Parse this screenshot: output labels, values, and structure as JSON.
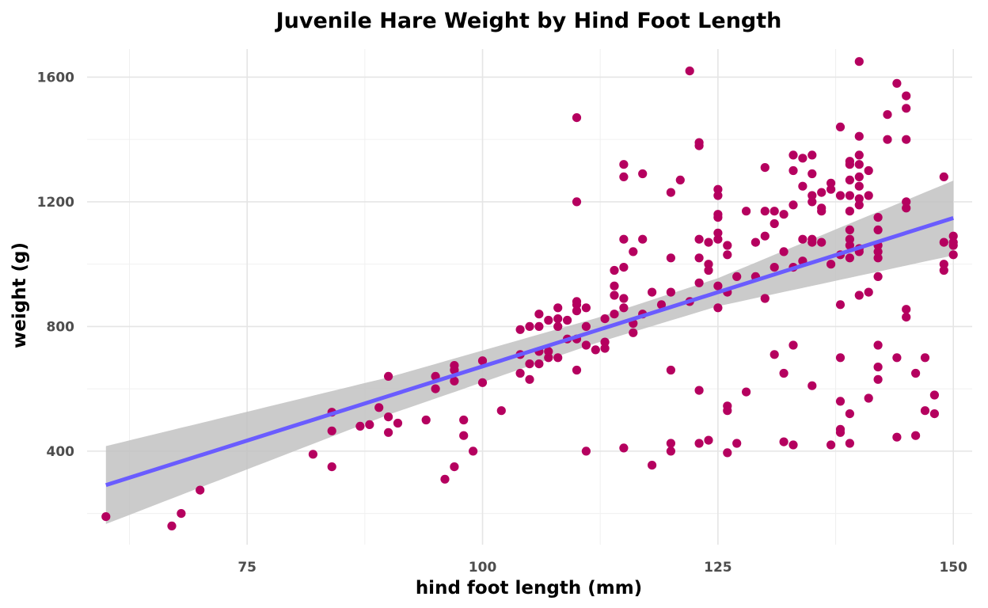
{
  "chart_data": {
    "type": "scatter",
    "title": "Juvenile Hare Weight by Hind Foot Length",
    "xlabel": "hind foot length (mm)",
    "ylabel": "weight (g)",
    "xlim": [
      58,
      152
    ],
    "ylim": [
      100,
      1690
    ],
    "x_ticks": [
      75,
      100,
      125,
      150
    ],
    "y_ticks": [
      400,
      800,
      1200,
      1600
    ],
    "x_minor": [
      62.5,
      87.5,
      112.5,
      137.5
    ],
    "y_minor": [
      200,
      600,
      1000,
      1400
    ],
    "grid": true,
    "legend": "none",
    "point_color": "#b5005f",
    "trend": {
      "type": "linear",
      "color": "#6a5cff",
      "ribbon_color": "#c2c2c2",
      "x_range": [
        60,
        150
      ],
      "slope": 9.52,
      "intercept": -280,
      "band": [
        [
          60,
          125
        ],
        [
          90,
          60
        ],
        [
          112,
          40
        ],
        [
          125,
          45
        ],
        [
          150,
          120
        ]
      ]
    },
    "points": [
      [
        60,
        190
      ],
      [
        67,
        160
      ],
      [
        68,
        200
      ],
      [
        70,
        275
      ],
      [
        82,
        390
      ],
      [
        84,
        350
      ],
      [
        84,
        465
      ],
      [
        84,
        525
      ],
      [
        87,
        480
      ],
      [
        88,
        485
      ],
      [
        89,
        540
      ],
      [
        90,
        460
      ],
      [
        90,
        510
      ],
      [
        90,
        640
      ],
      [
        91,
        490
      ],
      [
        94,
        500
      ],
      [
        95,
        600
      ],
      [
        95,
        640
      ],
      [
        96,
        310
      ],
      [
        97,
        350
      ],
      [
        97,
        625
      ],
      [
        97,
        660
      ],
      [
        97,
        675
      ],
      [
        98,
        450
      ],
      [
        98,
        500
      ],
      [
        99,
        400
      ],
      [
        100,
        620
      ],
      [
        100,
        690
      ],
      [
        102,
        530
      ],
      [
        104,
        650
      ],
      [
        104,
        710
      ],
      [
        104,
        790
      ],
      [
        105,
        630
      ],
      [
        105,
        680
      ],
      [
        105,
        800
      ],
      [
        106,
        680
      ],
      [
        106,
        720
      ],
      [
        106,
        800
      ],
      [
        106,
        840
      ],
      [
        107,
        700
      ],
      [
        107,
        720
      ],
      [
        107,
        820
      ],
      [
        108,
        700
      ],
      [
        108,
        800
      ],
      [
        108,
        825
      ],
      [
        108,
        860
      ],
      [
        109,
        760
      ],
      [
        109,
        820
      ],
      [
        110,
        660
      ],
      [
        110,
        760
      ],
      [
        110,
        850
      ],
      [
        110,
        870
      ],
      [
        110,
        880
      ],
      [
        110,
        1200
      ],
      [
        110,
        1470
      ],
      [
        111,
        400
      ],
      [
        111,
        740
      ],
      [
        111,
        800
      ],
      [
        111,
        860
      ],
      [
        112,
        725
      ],
      [
        113,
        730
      ],
      [
        113,
        750
      ],
      [
        113,
        825
      ],
      [
        114,
        840
      ],
      [
        114,
        900
      ],
      [
        114,
        930
      ],
      [
        114,
        980
      ],
      [
        115,
        410
      ],
      [
        115,
        860
      ],
      [
        115,
        890
      ],
      [
        115,
        990
      ],
      [
        115,
        1080
      ],
      [
        115,
        1280
      ],
      [
        115,
        1320
      ],
      [
        116,
        780
      ],
      [
        116,
        810
      ],
      [
        116,
        1040
      ],
      [
        117,
        840
      ],
      [
        117,
        1080
      ],
      [
        117,
        1290
      ],
      [
        118,
        355
      ],
      [
        118,
        910
      ],
      [
        119,
        870
      ],
      [
        120,
        400
      ],
      [
        120,
        425
      ],
      [
        120,
        660
      ],
      [
        120,
        910
      ],
      [
        120,
        1020
      ],
      [
        120,
        1230
      ],
      [
        121,
        1270
      ],
      [
        122,
        880
      ],
      [
        122,
        1620
      ],
      [
        123,
        425
      ],
      [
        123,
        595
      ],
      [
        123,
        940
      ],
      [
        123,
        1020
      ],
      [
        123,
        1080
      ],
      [
        123,
        1380
      ],
      [
        123,
        1390
      ],
      [
        124,
        435
      ],
      [
        124,
        980
      ],
      [
        124,
        1000
      ],
      [
        124,
        1070
      ],
      [
        125,
        860
      ],
      [
        125,
        930
      ],
      [
        125,
        1080
      ],
      [
        125,
        1100
      ],
      [
        125,
        1150
      ],
      [
        125,
        1160
      ],
      [
        125,
        1220
      ],
      [
        125,
        1240
      ],
      [
        126,
        395
      ],
      [
        126,
        530
      ],
      [
        126,
        545
      ],
      [
        126,
        910
      ],
      [
        126,
        1030
      ],
      [
        126,
        1060
      ],
      [
        127,
        425
      ],
      [
        127,
        960
      ],
      [
        128,
        590
      ],
      [
        128,
        1170
      ],
      [
        129,
        960
      ],
      [
        129,
        1070
      ],
      [
        130,
        890
      ],
      [
        130,
        1090
      ],
      [
        130,
        1170
      ],
      [
        130,
        1310
      ],
      [
        131,
        710
      ],
      [
        131,
        990
      ],
      [
        131,
        1130
      ],
      [
        131,
        1170
      ],
      [
        132,
        430
      ],
      [
        132,
        650
      ],
      [
        132,
        1040
      ],
      [
        132,
        1160
      ],
      [
        133,
        420
      ],
      [
        133,
        740
      ],
      [
        133,
        990
      ],
      [
        133,
        1190
      ],
      [
        133,
        1300
      ],
      [
        133,
        1350
      ],
      [
        134,
        1010
      ],
      [
        134,
        1080
      ],
      [
        134,
        1250
      ],
      [
        134,
        1340
      ],
      [
        135,
        610
      ],
      [
        135,
        1070
      ],
      [
        135,
        1080
      ],
      [
        135,
        1200
      ],
      [
        135,
        1220
      ],
      [
        135,
        1290
      ],
      [
        135,
        1350
      ],
      [
        136,
        1070
      ],
      [
        136,
        1170
      ],
      [
        136,
        1180
      ],
      [
        136,
        1230
      ],
      [
        137,
        420
      ],
      [
        137,
        1000
      ],
      [
        137,
        1240
      ],
      [
        137,
        1260
      ],
      [
        138,
        460
      ],
      [
        138,
        470
      ],
      [
        138,
        560
      ],
      [
        138,
        700
      ],
      [
        138,
        870
      ],
      [
        138,
        1030
      ],
      [
        138,
        1220
      ],
      [
        138,
        1440
      ],
      [
        139,
        425
      ],
      [
        139,
        520
      ],
      [
        139,
        1020
      ],
      [
        139,
        1060
      ],
      [
        139,
        1080
      ],
      [
        139,
        1110
      ],
      [
        139,
        1170
      ],
      [
        139,
        1220
      ],
      [
        139,
        1270
      ],
      [
        139,
        1320
      ],
      [
        139,
        1330
      ],
      [
        140,
        900
      ],
      [
        140,
        1040
      ],
      [
        140,
        1050
      ],
      [
        140,
        1190
      ],
      [
        140,
        1210
      ],
      [
        140,
        1250
      ],
      [
        140,
        1280
      ],
      [
        140,
        1320
      ],
      [
        140,
        1350
      ],
      [
        140,
        1410
      ],
      [
        140,
        1650
      ],
      [
        141,
        570
      ],
      [
        141,
        910
      ],
      [
        141,
        1220
      ],
      [
        141,
        1300
      ],
      [
        142,
        630
      ],
      [
        142,
        670
      ],
      [
        142,
        740
      ],
      [
        142,
        960
      ],
      [
        142,
        1020
      ],
      [
        142,
        1040
      ],
      [
        142,
        1060
      ],
      [
        142,
        1110
      ],
      [
        142,
        1150
      ],
      [
        143,
        1400
      ],
      [
        143,
        1480
      ],
      [
        144,
        445
      ],
      [
        144,
        700
      ],
      [
        144,
        1580
      ],
      [
        145,
        830
      ],
      [
        145,
        855
      ],
      [
        145,
        1180
      ],
      [
        145,
        1200
      ],
      [
        145,
        1400
      ],
      [
        145,
        1500
      ],
      [
        145,
        1540
      ],
      [
        146,
        450
      ],
      [
        146,
        650
      ],
      [
        147,
        530
      ],
      [
        147,
        700
      ],
      [
        148,
        520
      ],
      [
        148,
        580
      ],
      [
        149,
        980
      ],
      [
        149,
        1000
      ],
      [
        149,
        1070
      ],
      [
        149,
        1280
      ],
      [
        150,
        1030
      ],
      [
        150,
        1060
      ],
      [
        150,
        1070
      ],
      [
        150,
        1090
      ]
    ]
  }
}
